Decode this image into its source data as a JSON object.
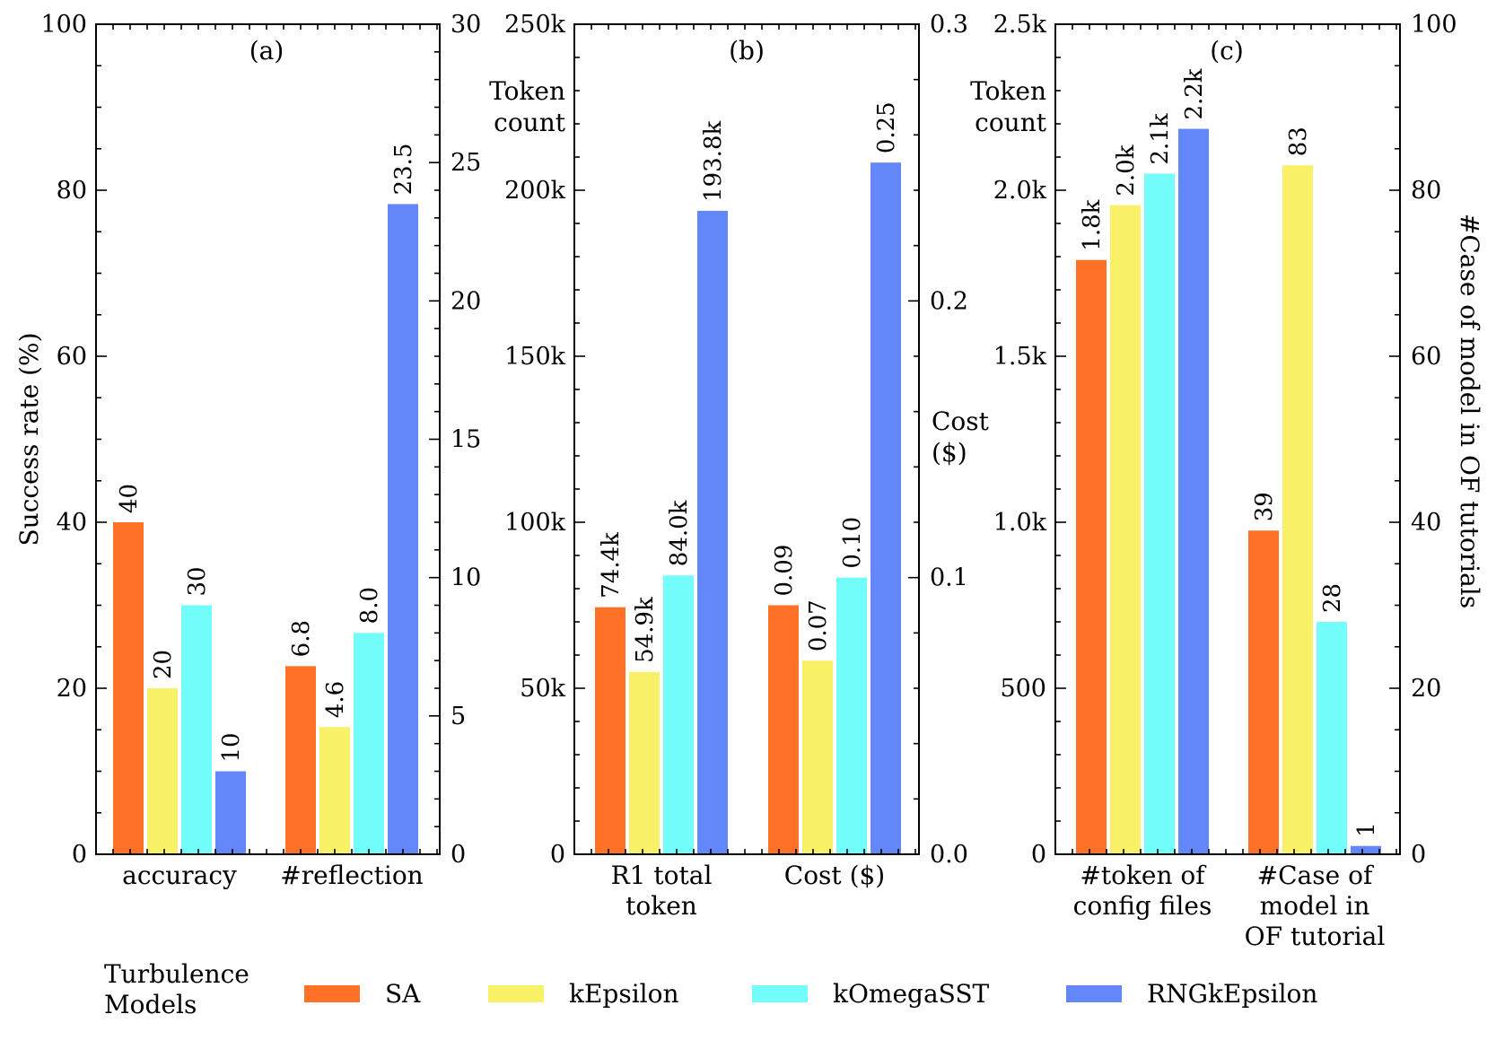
{
  "legend": {
    "title_line1": "Turbulence",
    "title_line2": "Models",
    "items": [
      {
        "name": "SA",
        "color": "#FF7127"
      },
      {
        "name": "kEpsilon",
        "color": "#F8F167"
      },
      {
        "name": "kOmegaSST",
        "color": "#72FDFB"
      },
      {
        "name": "RNGkEpsilon",
        "color": "#6387F8"
      }
    ]
  },
  "chart_data": [
    {
      "type": "bar",
      "panel": "(a)",
      "categories": [
        "accuracy",
        "#reflection"
      ],
      "left_axis": {
        "title": "Success rate (%)",
        "range": [
          0,
          100
        ],
        "ticks": [
          "0",
          "20",
          "40",
          "60",
          "80",
          "100"
        ],
        "tick_values": [
          0,
          20,
          40,
          60,
          80,
          100
        ]
      },
      "right_axis": {
        "title": "",
        "range": [
          0,
          30
        ],
        "ticks": [
          "0",
          "5",
          "10",
          "15",
          "20",
          "25",
          "30"
        ],
        "tick_values": [
          0,
          5,
          10,
          15,
          20,
          25,
          30
        ]
      },
      "groups": [
        {
          "category": "accuracy",
          "axis": "left",
          "values": [
            40,
            20,
            30,
            10
          ],
          "labels": [
            "40",
            "20",
            "30",
            "10"
          ]
        },
        {
          "category": "#reflection",
          "axis": "right",
          "values": [
            6.8,
            4.6,
            8.0,
            23.5
          ],
          "labels": [
            "6.8",
            "4.6",
            "8.0",
            "23.5"
          ]
        }
      ]
    },
    {
      "type": "bar",
      "panel": "(b)",
      "categories": [
        "R1 total token",
        "Cost ($)"
      ],
      "category_lines": [
        [
          "R1 total",
          "token"
        ],
        [
          "Cost ($)"
        ]
      ],
      "left_axis": {
        "title_lines": [
          "Token",
          "count"
        ],
        "range": [
          0,
          250000
        ],
        "ticks": [
          "0",
          "50k",
          "100k",
          "150k",
          "200k",
          "250k"
        ],
        "tick_values": [
          0,
          50000,
          100000,
          150000,
          200000,
          250000
        ]
      },
      "right_axis": {
        "title_lines": [
          "Cost",
          "($)"
        ],
        "range": [
          0,
          0.3
        ],
        "ticks": [
          "0.0",
          "0.1",
          "0.2",
          "0.3"
        ],
        "tick_values": [
          0,
          0.1,
          0.2,
          0.3
        ]
      },
      "groups": [
        {
          "category": "R1 total token",
          "axis": "left",
          "values": [
            74400,
            54900,
            84000,
            193800
          ],
          "labels": [
            "74.4k",
            "54.9k",
            "84.0k",
            "193.8k"
          ]
        },
        {
          "category": "Cost ($)",
          "axis": "right",
          "values": [
            0.09,
            0.07,
            0.1,
            0.25
          ],
          "labels": [
            "0.09",
            "0.07",
            "0.10",
            "0.25"
          ]
        }
      ]
    },
    {
      "type": "bar",
      "panel": "(c)",
      "categories": [
        "#token of config files",
        "#Case of model in OF tutorial"
      ],
      "category_lines": [
        [
          "#token of",
          "config files"
        ],
        [
          "#Case of",
          "model in",
          "OF tutorial"
        ]
      ],
      "left_axis": {
        "title_lines": [
          "Token",
          "count"
        ],
        "range": [
          0,
          2500
        ],
        "ticks": [
          "0",
          "500",
          "1.0k",
          "1.5k",
          "2.0k",
          "2.5k"
        ],
        "tick_values": [
          0,
          500,
          1000,
          1500,
          2000,
          2500
        ]
      },
      "right_axis": {
        "title": "#Case of model in OF tutorials",
        "range": [
          0,
          100
        ],
        "ticks": [
          "0",
          "20",
          "40",
          "60",
          "80",
          "100"
        ],
        "tick_values": [
          0,
          20,
          40,
          60,
          80,
          100
        ]
      },
      "groups": [
        {
          "category": "#token of config files",
          "axis": "left",
          "values": [
            1790,
            1955,
            2050,
            2185
          ],
          "labels": [
            "1.8k",
            "2.0k",
            "2.1k",
            "2.2k"
          ]
        },
        {
          "category": "#Case of model in OF tutorial",
          "axis": "right",
          "values": [
            39,
            83,
            28,
            1
          ],
          "labels": [
            "39",
            "83",
            "28",
            "1"
          ]
        }
      ]
    }
  ]
}
